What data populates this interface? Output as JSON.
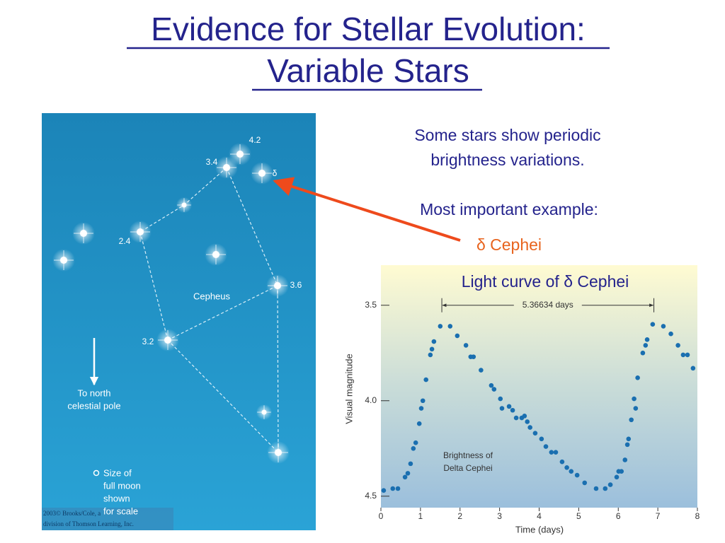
{
  "slide": {
    "title": [
      "Evidence for Stellar Evolution:",
      "Variable Stars"
    ],
    "text": [
      "Some stars show periodic",
      "brightness variations.",
      "Most important example:",
      "δ Cephei"
    ]
  },
  "star_map": {
    "star_labels": [
      "4.2",
      "3.4",
      "δ",
      "2.4",
      "3.6",
      "3.2"
    ],
    "constellation": "Cepheus",
    "pole_note": [
      "To north",
      "celestial pole"
    ],
    "scale_note": [
      "Size of",
      "full moon",
      "shown",
      "for scale"
    ],
    "credit": [
      "2003© Brooks/Cole, a",
      "division of Thomson Learning, Inc."
    ]
  },
  "chart_data": {
    "type": "scatter",
    "title": "Light curve of δ Cephei",
    "xlabel": "Time (days)",
    "ylabel": "Visual magnitude",
    "annotations": [
      "5.36634 days",
      "Brightness of",
      "Delta Cephei"
    ],
    "period_span": [
      1.54,
      6.9
    ],
    "xlim": [
      0,
      8
    ],
    "ylim": [
      4.56,
      3.29
    ],
    "xticks": [
      0,
      1,
      2,
      3,
      4,
      5,
      6,
      7,
      8
    ],
    "yticks": [
      3.5,
      {
        "value": 4.0,
        "label": "4.0"
      },
      4.5
    ],
    "series": [
      {
        "color": "#1a6fb0",
        "x": [
          0.07,
          0.3,
          0.43,
          0.61,
          0.68,
          0.75,
          0.82,
          0.88,
          0.97,
          1.02,
          1.06,
          1.14,
          1.25,
          1.29,
          1.34,
          1.5,
          1.75,
          1.93,
          2.15,
          2.27,
          2.34,
          2.53,
          2.79,
          2.86,
          3.02,
          3.06,
          3.24,
          3.33,
          3.42,
          3.56,
          3.63,
          3.7,
          3.77,
          3.9,
          4.06,
          4.17,
          4.31,
          4.42,
          4.58,
          4.7,
          4.81,
          4.96,
          5.15,
          5.44,
          5.67,
          5.8,
          5.96,
          6.01,
          6.08,
          6.17,
          6.23,
          6.26,
          6.33,
          6.4,
          6.44,
          6.49,
          6.62,
          6.69,
          6.73,
          6.87,
          7.14,
          7.33,
          7.51,
          7.64,
          7.75,
          7.89
        ],
        "values": [
          4.47,
          4.46,
          4.46,
          4.4,
          4.38,
          4.33,
          4.25,
          4.22,
          4.12,
          4.04,
          4.0,
          3.89,
          3.76,
          3.73,
          3.69,
          3.61,
          3.61,
          3.66,
          3.71,
          3.77,
          3.77,
          3.84,
          3.92,
          3.94,
          3.99,
          4.04,
          4.03,
          4.05,
          4.09,
          4.09,
          4.08,
          4.11,
          4.14,
          4.17,
          4.2,
          4.24,
          4.27,
          4.27,
          4.32,
          4.35,
          4.37,
          4.39,
          4.43,
          4.46,
          4.46,
          4.44,
          4.4,
          4.37,
          4.37,
          4.31,
          4.23,
          4.2,
          4.1,
          3.99,
          4.04,
          3.88,
          3.75,
          3.71,
          3.68,
          3.6,
          3.61,
          3.65,
          3.71,
          3.76,
          3.76,
          3.83
        ]
      }
    ]
  }
}
